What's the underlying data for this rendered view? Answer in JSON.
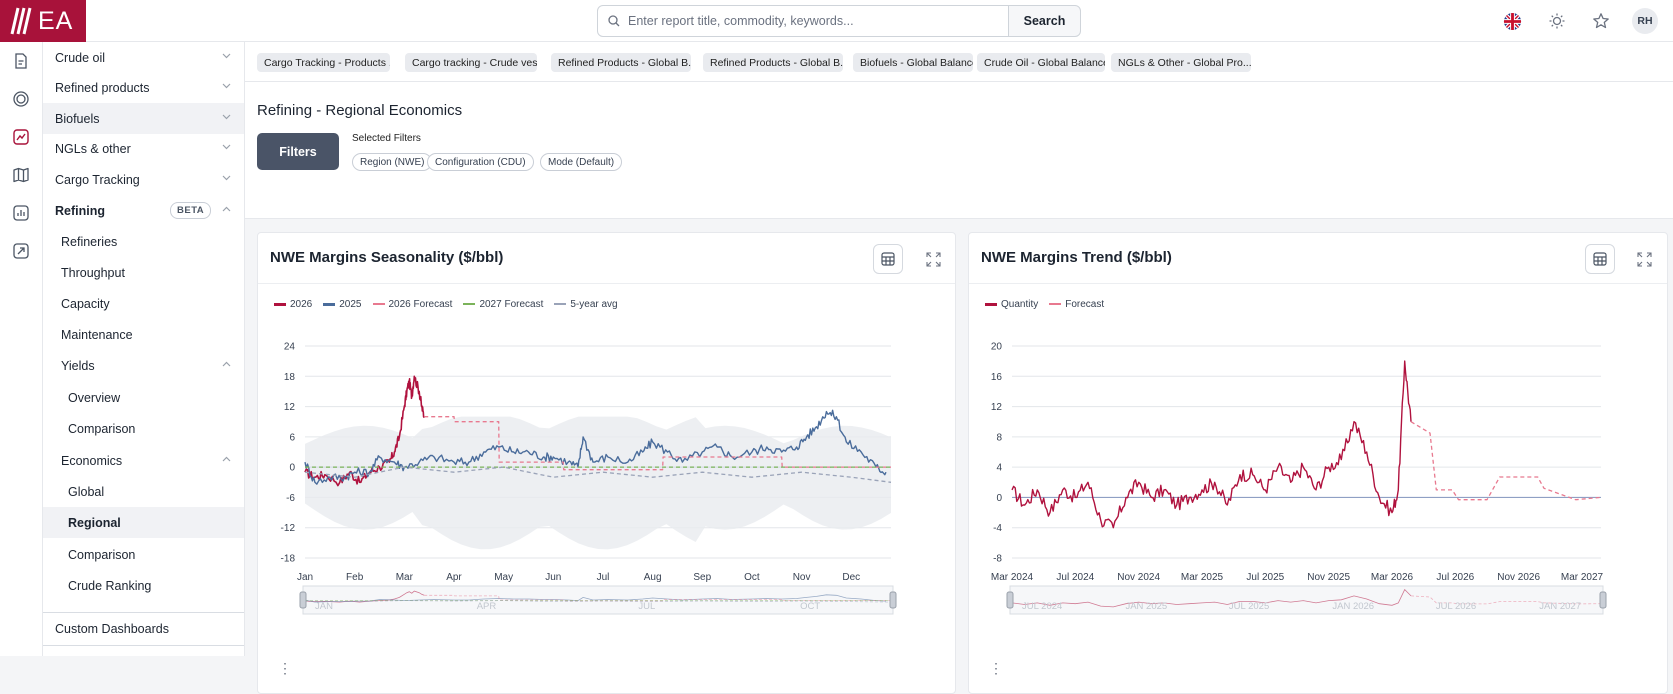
{
  "app": {
    "logo_text": "EA"
  },
  "search": {
    "placeholder": "Enter report title, commodity, keywords...",
    "value": "",
    "button": "Search"
  },
  "topbar": {
    "language_icon": "uk-flag-icon",
    "theme_icon": "sun-icon",
    "favorites_icon": "star-icon",
    "avatar_initials": "RH"
  },
  "rail": {
    "icons": [
      "document-icon",
      "circle-icon",
      "analytics-icon",
      "map-icon",
      "data-icon",
      "satellite-icon"
    ],
    "active_index": 2
  },
  "sidebar": {
    "items": [
      {
        "label": "Crude oil"
      },
      {
        "label": "Refined products"
      },
      {
        "label": "Biofuels"
      },
      {
        "label": "NGLs & other"
      },
      {
        "label": "Cargo Tracking"
      },
      {
        "label": "Refining",
        "badge": "BETA"
      },
      {
        "label": "Refineries"
      },
      {
        "label": "Throughput"
      },
      {
        "label": "Capacity"
      },
      {
        "label": "Maintenance"
      },
      {
        "label": "Yields"
      },
      {
        "label": "Overview"
      },
      {
        "label": "Comparison"
      },
      {
        "label": "Economics"
      },
      {
        "label": "Global"
      },
      {
        "label": "Regional"
      },
      {
        "label": "Comparison"
      },
      {
        "label": "Crude Ranking"
      },
      {
        "label": "Custom Dashboards"
      }
    ]
  },
  "tabs": [
    "Cargo Tracking - Products ...",
    "Cargo tracking - Crude ves...",
    "Refined Products - Global B...",
    "Refined Products - Global B...",
    "Biofuels - Global Balance",
    "Crude Oil - Global Balance",
    "NGLs & Other - Global Pro..."
  ],
  "page": {
    "title": "Refining - Regional Economics",
    "filters_button": "Filters",
    "selected_filters_label": "Selected Filters",
    "selected_filters": [
      "Region (NWE)",
      "Configuration (CDU)",
      "Mode (Default)"
    ]
  },
  "colors": {
    "c2026": "#b0123e",
    "c2025": "#4a6c9b",
    "forecast": "#e8798f",
    "f2027": "#7bb35a",
    "avg": "#9aa3b8",
    "brand": "#a8123a"
  },
  "chart_data": [
    {
      "type": "line",
      "title": "NWE Margins Seasonality ($/bbl)",
      "x": [
        "Jan",
        "Feb",
        "Mar",
        "Apr",
        "May",
        "Jun",
        "Jul",
        "Aug",
        "Sep",
        "Oct",
        "Nov",
        "Dec"
      ],
      "ylim": [
        -18,
        24
      ],
      "yticks": [
        24,
        18,
        12,
        6,
        0,
        -6,
        -12,
        -18
      ],
      "navigator_labels": [
        "JAN",
        "APR",
        "JUL",
        "OCT"
      ],
      "series": [
        {
          "name": "2026",
          "x": [
            0,
            0.2,
            0.4,
            0.7,
            0.9,
            1.1,
            1.3,
            1.5,
            1.7,
            1.8,
            1.9,
            2.0,
            2.05,
            2.1,
            2.15,
            2.2,
            2.3,
            2.35,
            2.4
          ],
          "values": [
            -1,
            -2,
            -1.5,
            -3,
            -1,
            -3,
            -1,
            0,
            1,
            3,
            6,
            12,
            15,
            17,
            14,
            18,
            15,
            12,
            10
          ]
        },
        {
          "name": "2025",
          "x": [
            0,
            0.2,
            0.5,
            0.8,
            1.0,
            1.3,
            1.5,
            1.8,
            2.0,
            2.3,
            2.6,
            3.0,
            3.3,
            3.6,
            3.9,
            4.2,
            4.5,
            4.8,
            5.0,
            5.3,
            5.5,
            5.6,
            5.8,
            6.1,
            6.5,
            6.8,
            7.0,
            7.3,
            7.6,
            8.0,
            8.3,
            8.6,
            9.0,
            9.3,
            9.6,
            9.9,
            10.1,
            10.3,
            10.5,
            10.7,
            10.9,
            11.2,
            11.5,
            11.7
          ],
          "values": [
            1,
            -3,
            -2,
            -2,
            -1,
            -1,
            2,
            1,
            0,
            1,
            2,
            1,
            1,
            3,
            4,
            3,
            3,
            2,
            2,
            1,
            0,
            6,
            1,
            2,
            1,
            3,
            5,
            3,
            1,
            3,
            4,
            2,
            3,
            4,
            3,
            4,
            6,
            8,
            11,
            10,
            5,
            3,
            0,
            -1
          ]
        },
        {
          "name": "2026 Forecast",
          "x": [
            2.4,
            3.0,
            3.01,
            3.9,
            3.91,
            5.2,
            5.21,
            7.2,
            7.21,
            9.6,
            9.61,
            11.8
          ],
          "values": [
            10,
            10,
            9,
            9,
            1,
            1,
            -0.5,
            -0.5,
            2,
            2,
            0,
            0
          ]
        },
        {
          "name": "2027 Forecast",
          "x": [
            0,
            11.8
          ],
          "values": [
            0,
            0
          ]
        },
        {
          "name": "5-year avg",
          "x": [
            0,
            1,
            2,
            3,
            4,
            5,
            6,
            7,
            8,
            9,
            10,
            11,
            11.8
          ],
          "values": [
            -1,
            -2,
            0,
            -1,
            0,
            -2,
            -1,
            -2,
            -1,
            -2,
            -1,
            -2,
            -3
          ]
        }
      ]
    },
    {
      "type": "line",
      "title": "NWE Margins Trend ($/bbl)",
      "x": [
        "Mar 2024",
        "Jul 2024",
        "Nov 2024",
        "Mar 2025",
        "Jul 2025",
        "Nov 2025",
        "Mar 2026",
        "Jul 2026",
        "Nov 2026",
        "Mar 2027"
      ],
      "ylim": [
        -8,
        20
      ],
      "yticks": [
        20,
        16,
        12,
        8,
        4,
        0,
        -4,
        -8
      ],
      "navigator_labels": [
        "JUL 2024",
        "JAN 2025",
        "JUL 2025",
        "JAN 2026",
        "JUL 2026",
        "JAN 2027"
      ],
      "series": [
        {
          "name": "Quantity",
          "x": [
            0,
            0.2,
            0.4,
            0.6,
            0.8,
            1.0,
            1.2,
            1.4,
            1.6,
            1.8,
            2.0,
            2.2,
            2.4,
            2.6,
            2.8,
            3.0,
            3.2,
            3.4,
            3.6,
            3.8,
            4.0,
            4.2,
            4.4,
            4.6,
            4.8,
            5.0,
            5.2,
            5.4,
            5.6,
            5.8,
            6.0,
            6.1,
            6.2,
            6.3
          ],
          "values": [
            1,
            -1,
            1,
            -2,
            1,
            0,
            2,
            -3,
            -4,
            0,
            2,
            0,
            1,
            -1,
            0,
            1,
            2,
            -1,
            3,
            3,
            1,
            4,
            2,
            4,
            1,
            4,
            5,
            10,
            6,
            0,
            -2,
            1,
            18,
            10
          ]
        },
        {
          "name": "Forecast",
          "x": [
            6.3,
            6.6,
            6.7,
            6.95,
            7.05,
            7.5,
            7.7,
            8.3,
            8.4,
            8.8,
            8.9,
            9.3
          ],
          "values": [
            10,
            8.5,
            1,
            1,
            -0.3,
            -0.3,
            2.7,
            2.7,
            1.2,
            0,
            -0.3,
            0
          ]
        }
      ]
    }
  ]
}
